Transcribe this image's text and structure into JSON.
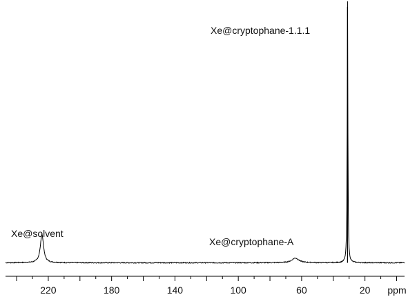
{
  "chart_data": {
    "type": "line",
    "title": "",
    "xlabel": "",
    "ylabel": "",
    "x_unit": "ppm",
    "x_reversed": true,
    "xlim": [
      247,
      -5
    ],
    "ylim": [
      0,
      1
    ],
    "grid": false,
    "x_ticks": [
      220,
      180,
      140,
      100,
      60,
      20
    ],
    "series": [
      {
        "color": "#000000",
        "baseline": 0.02,
        "peaks": [
          {
            "label": "Xe@solvent",
            "x": 224,
            "height": 0.11,
            "width": 1.2
          },
          {
            "label": "Xe@cryptophane-A",
            "x": 64,
            "height": 0.018,
            "width": 2.6
          },
          {
            "label": "Xe@cryptophane-1.1.1",
            "x": 31,
            "height": 1.0,
            "width": 0.25
          }
        ]
      }
    ]
  }
}
